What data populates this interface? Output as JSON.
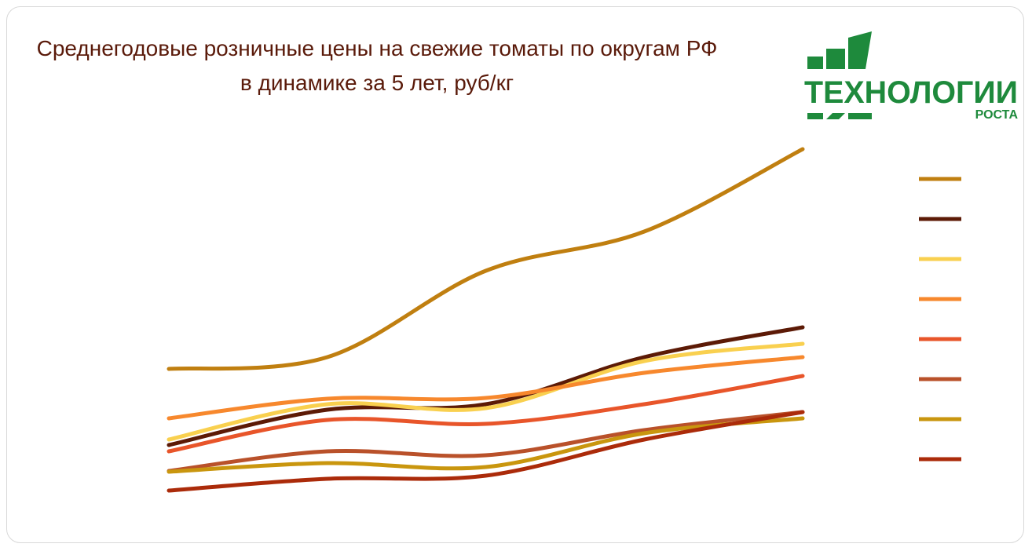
{
  "chart_data": {
    "type": "line",
    "title": "Среднегодовые розничные цены на свежие томаты по округам РФ в динамике за 5 лет, руб/кг",
    "categories": [
      null,
      null,
      null,
      null,
      null
    ],
    "ylim": [
      50,
      250
    ],
    "series": [
      {
        "color": "#c07f10",
        "values": [
          126,
          132,
          176,
          196,
          238
        ]
      },
      {
        "color": "#5c1a06",
        "values": [
          87.2,
          105.2,
          108,
          132,
          147.2
        ]
      },
      {
        "color": "#f9d04f",
        "values": [
          90,
          108,
          106,
          130,
          138.8
        ]
      },
      {
        "color": "#f7882d",
        "values": [
          100.8,
          110.8,
          111.2,
          124,
          132
        ]
      },
      {
        "color": "#e8552a",
        "values": [
          84,
          100,
          98,
          108,
          122.4
        ]
      },
      {
        "color": "#b9512a",
        "values": [
          74,
          84,
          82,
          94.8,
          104
        ]
      },
      {
        "color": "#c9960e",
        "values": [
          73.6,
          78,
          76,
          93.2,
          100.8
        ]
      },
      {
        "color": "#ab2b0a",
        "values": [
          64,
          70,
          71.6,
          90,
          104
        ]
      }
    ]
  },
  "logo": {
    "line1": "ТЕХНОЛОГИИ",
    "line2": "РОСТА"
  }
}
